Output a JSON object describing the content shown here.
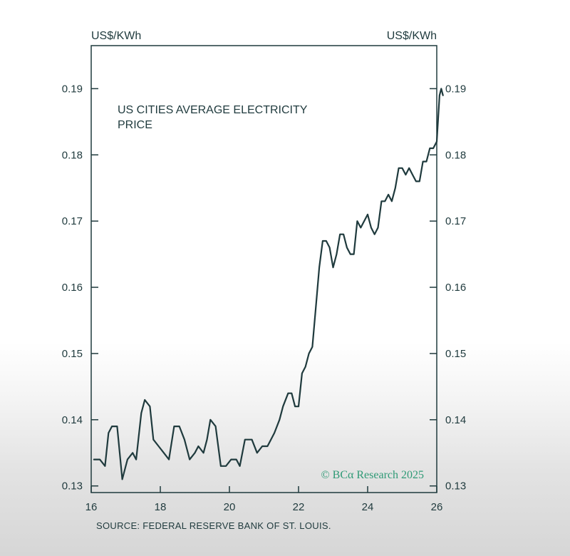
{
  "colors": {
    "line": "#1f3a3d",
    "axis": "#1f3a3d",
    "text": "#1f3a3d",
    "brand": "#2f9a76"
  },
  "units": {
    "left": "US$/KWh",
    "right": "US$/KWh"
  },
  "title_lines": [
    "US CITIES AVERAGE ELECTRICITY",
    "PRICE"
  ],
  "source": "SOURCE: FEDERAL RESERVE BANK OF ST. LOUIS.",
  "brand": "© BCα Research 2025",
  "chart_data": {
    "type": "line",
    "title": "US CITIES AVERAGE ELECTRICITY PRICE",
    "xlabel": "",
    "ylabel": "US$/KWh",
    "xlim": [
      16,
      26
    ],
    "ylim": [
      0.129,
      0.1965
    ],
    "x_ticks": [
      16,
      18,
      20,
      22,
      24,
      26
    ],
    "x_tick_labels": [
      "16",
      "18",
      "20",
      "22",
      "24",
      "26"
    ],
    "y_ticks": [
      0.13,
      0.14,
      0.15,
      0.16,
      0.17,
      0.18,
      0.19
    ],
    "y_tick_labels": [
      "0.13",
      "0.14",
      "0.15",
      "0.16",
      "0.17",
      "0.18",
      "0.19"
    ],
    "y_axis_right": true,
    "grid": false,
    "series": [
      {
        "values": [
          [
            16.08,
            0.134
          ],
          [
            16.25,
            0.134
          ],
          [
            16.4,
            0.133
          ],
          [
            16.5,
            0.138
          ],
          [
            16.6,
            0.139
          ],
          [
            16.75,
            0.139
          ],
          [
            16.9,
            0.131
          ],
          [
            17.05,
            0.134
          ],
          [
            17.2,
            0.135
          ],
          [
            17.3,
            0.134
          ],
          [
            17.45,
            0.141
          ],
          [
            17.55,
            0.143
          ],
          [
            17.7,
            0.142
          ],
          [
            17.8,
            0.137
          ],
          [
            17.95,
            0.136
          ],
          [
            18.1,
            0.135
          ],
          [
            18.25,
            0.134
          ],
          [
            18.4,
            0.139
          ],
          [
            18.55,
            0.139
          ],
          [
            18.7,
            0.137
          ],
          [
            18.85,
            0.134
          ],
          [
            19.0,
            0.135
          ],
          [
            19.1,
            0.136
          ],
          [
            19.25,
            0.135
          ],
          [
            19.35,
            0.137
          ],
          [
            19.45,
            0.14
          ],
          [
            19.6,
            0.139
          ],
          [
            19.75,
            0.133
          ],
          [
            19.9,
            0.133
          ],
          [
            20.05,
            0.134
          ],
          [
            20.2,
            0.134
          ],
          [
            20.3,
            0.133
          ],
          [
            20.45,
            0.137
          ],
          [
            20.65,
            0.137
          ],
          [
            20.8,
            0.135
          ],
          [
            20.95,
            0.136
          ],
          [
            21.1,
            0.136
          ],
          [
            21.3,
            0.138
          ],
          [
            21.45,
            0.14
          ],
          [
            21.55,
            0.142
          ],
          [
            21.7,
            0.144
          ],
          [
            21.8,
            0.144
          ],
          [
            21.9,
            0.142
          ],
          [
            22.0,
            0.142
          ],
          [
            22.1,
            0.147
          ],
          [
            22.2,
            0.148
          ],
          [
            22.3,
            0.15
          ],
          [
            22.4,
            0.151
          ],
          [
            22.5,
            0.157
          ],
          [
            22.6,
            0.163
          ],
          [
            22.7,
            0.167
          ],
          [
            22.8,
            0.167
          ],
          [
            22.9,
            0.166
          ],
          [
            23.0,
            0.163
          ],
          [
            23.1,
            0.165
          ],
          [
            23.2,
            0.168
          ],
          [
            23.3,
            0.168
          ],
          [
            23.4,
            0.166
          ],
          [
            23.5,
            0.165
          ],
          [
            23.6,
            0.165
          ],
          [
            23.7,
            0.17
          ],
          [
            23.8,
            0.169
          ],
          [
            23.9,
            0.17
          ],
          [
            24.0,
            0.171
          ],
          [
            24.1,
            0.169
          ],
          [
            24.2,
            0.168
          ],
          [
            24.3,
            0.169
          ],
          [
            24.4,
            0.173
          ],
          [
            24.5,
            0.173
          ],
          [
            24.6,
            0.174
          ],
          [
            24.7,
            0.173
          ],
          [
            24.8,
            0.175
          ],
          [
            24.9,
            0.178
          ],
          [
            25.0,
            0.178
          ],
          [
            25.1,
            0.177
          ],
          [
            25.2,
            0.178
          ],
          [
            25.3,
            0.177
          ],
          [
            25.4,
            0.176
          ],
          [
            25.5,
            0.176
          ],
          [
            25.6,
            0.179
          ],
          [
            25.7,
            0.179
          ],
          [
            25.8,
            0.181
          ],
          [
            25.9,
            0.181
          ],
          [
            26.0,
            0.182
          ],
          [
            26.08,
            0.189
          ],
          [
            26.13,
            0.19
          ],
          [
            26.18,
            0.189
          ]
        ]
      }
    ]
  }
}
